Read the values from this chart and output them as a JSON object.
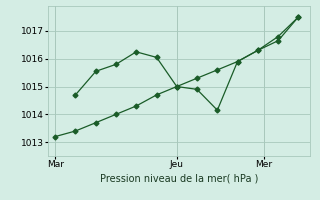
{
  "background_color": "#d4ede4",
  "grid_color": "#a8c8bc",
  "line_color": "#1a5c28",
  "marker_color": "#1a5c28",
  "xlabel": "Pression niveau de la mer( hPa )",
  "ylim": [
    1012.5,
    1017.9
  ],
  "yticks": [
    1013,
    1014,
    1015,
    1016,
    1017
  ],
  "x_tick_labels": [
    "Mar",
    "Jeu",
    "Mer"
  ],
  "x_tick_positions": [
    0.0,
    0.5,
    0.857
  ],
  "vline_positions": [
    0.0,
    0.5,
    0.857
  ],
  "line1_x": [
    0.0,
    0.083,
    0.167,
    0.25,
    0.333,
    0.417,
    0.5,
    0.583,
    0.667,
    0.75,
    0.833,
    0.917,
    1.0
  ],
  "line1_y": [
    1013.2,
    1013.4,
    1013.7,
    1014.0,
    1014.3,
    1014.7,
    1015.0,
    1015.3,
    1015.6,
    1015.9,
    1016.3,
    1016.8,
    1017.5
  ],
  "line2_x": [
    0.083,
    0.167,
    0.25,
    0.333,
    0.417,
    0.5,
    0.583,
    0.667,
    0.75,
    0.833,
    0.917,
    1.0
  ],
  "line2_y": [
    1014.7,
    1015.55,
    1015.8,
    1016.25,
    1016.05,
    1015.0,
    1014.9,
    1014.15,
    1015.9,
    1016.3,
    1016.65,
    1017.5
  ],
  "xlim": [
    -0.03,
    1.05
  ]
}
